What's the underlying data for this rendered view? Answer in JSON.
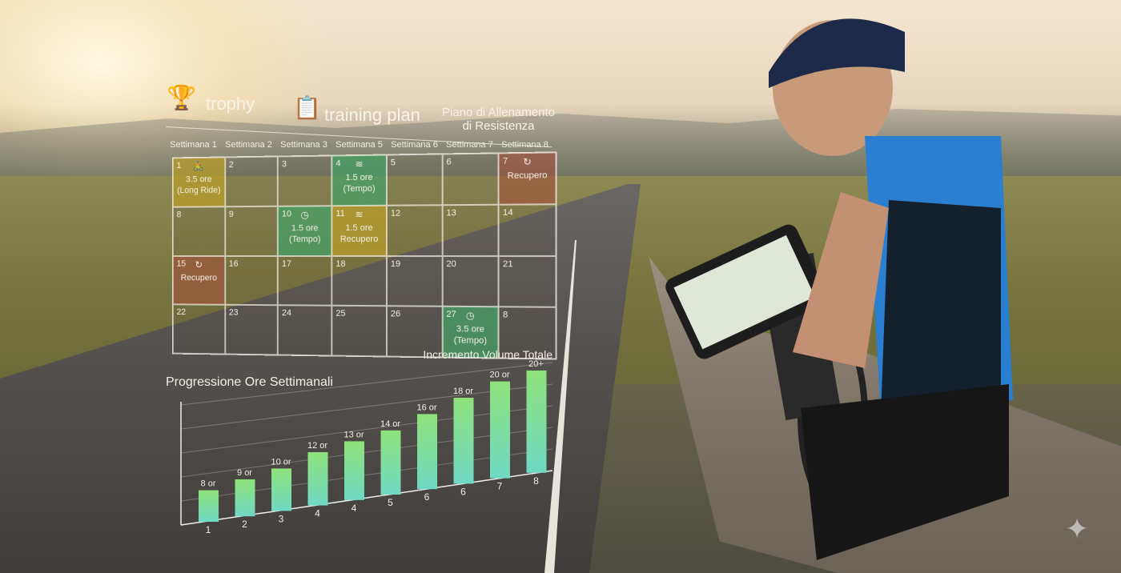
{
  "header": {
    "trophy_label": "trophy",
    "training_plan_label": "training plan",
    "title": "Piano di Allenamento di Resistenza",
    "trophy_icon": "trophy-icon",
    "plan_icon": "clipboard-icon"
  },
  "calendar": {
    "weeks": [
      "Settimana 1",
      "Settimana 2",
      "Settimana 3",
      "Settimana 5",
      "Settimana 6",
      "Settimana 7",
      "Settimana 8"
    ],
    "cells": [
      {
        "n": "1",
        "text": "3.5 ore (Long Ride)",
        "color": "yellow",
        "icon": "bike-icon"
      },
      {
        "n": "2"
      },
      {
        "n": "3"
      },
      {
        "n": "4",
        "text": "1.5 ore (Tempo)",
        "color": "green",
        "icon": "speed-icon"
      },
      {
        "n": "5"
      },
      {
        "n": "6"
      },
      {
        "n": "7",
        "text": "Recupero",
        "color": "red",
        "icon": "recovery-icon"
      },
      {
        "n": "8"
      },
      {
        "n": "9"
      },
      {
        "n": "10",
        "text": "1.5 ore (Tempo)",
        "color": "green",
        "icon": "clock-icon"
      },
      {
        "n": "11",
        "text": "1.5 ore Recupero",
        "color": "yellow",
        "icon": "speed-icon"
      },
      {
        "n": "12"
      },
      {
        "n": "13"
      },
      {
        "n": "14"
      },
      {
        "n": "15",
        "text": "Recupero",
        "color": "red",
        "icon": "recovery-icon"
      },
      {
        "n": "16"
      },
      {
        "n": "17"
      },
      {
        "n": "18"
      },
      {
        "n": "19"
      },
      {
        "n": "20"
      },
      {
        "n": "21"
      },
      {
        "n": "22"
      },
      {
        "n": "23"
      },
      {
        "n": "24"
      },
      {
        "n": "25"
      },
      {
        "n": "26"
      },
      {
        "n": "27",
        "text": "3.5 ore (Tempo)",
        "color": "green",
        "icon": "clock-icon"
      },
      {
        "n": "8"
      }
    ]
  },
  "chart_data": {
    "type": "bar",
    "title": "Progressione Ore Settimanali",
    "subtitle": "Incremento Volume Totale",
    "categories": [
      "1",
      "2",
      "3",
      "4",
      "4",
      "5",
      "6",
      "6",
      "7",
      "8"
    ],
    "values": [
      8,
      9,
      10,
      12,
      13,
      14,
      16,
      18,
      20,
      21
    ],
    "labels": [
      "8 or",
      "9 or",
      "10 or",
      "12 or",
      "13 or",
      "14 or",
      "16 or",
      "18 or",
      "20 or",
      "20+"
    ],
    "bar_color": [
      "#6fd9c4",
      "#8fe27a"
    ],
    "grid": true
  },
  "colors": {
    "yellow": "#bea028",
    "green": "#46a064",
    "red": "#aa503c"
  }
}
